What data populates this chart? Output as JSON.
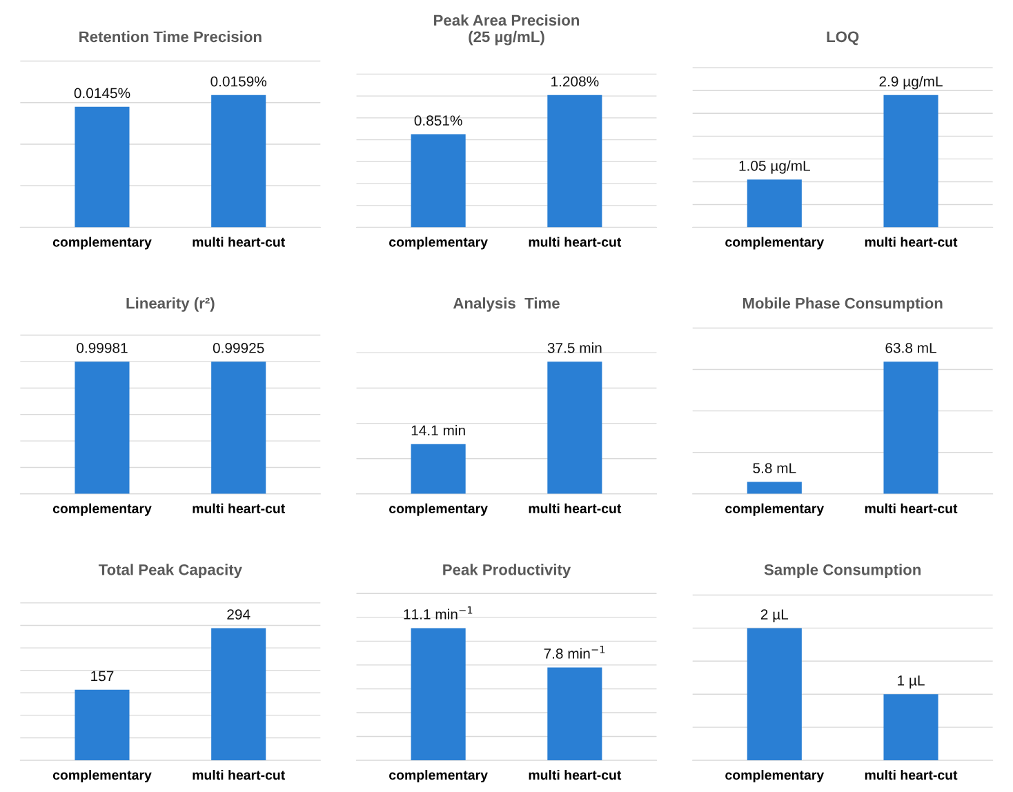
{
  "chart_data": [
    {
      "type": "bar",
      "title": "Retention Time Precision",
      "categories": [
        "complementary",
        "multi heart-cut"
      ],
      "values": [
        0.0145,
        0.0159
      ],
      "value_labels": [
        "0.0145%",
        "0.0159%"
      ],
      "color": "#2a7fd4",
      "grid": "y",
      "tick_labels": "x",
      "legend": false
    },
    {
      "type": "bar",
      "title": "Peak Area Precision\n(25 µg/mL)",
      "categories": [
        "complementary",
        "multi heart-cut"
      ],
      "values": [
        0.851,
        1.208
      ],
      "value_labels": [
        "0.851%",
        "1.208%"
      ],
      "color": "#2a7fd4",
      "grid": "y",
      "tick_labels": "x",
      "legend": false
    },
    {
      "type": "bar",
      "title": "LOQ",
      "categories": [
        "complementary",
        "multi heart-cut"
      ],
      "values": [
        1.05,
        2.9
      ],
      "value_labels": [
        "1.05 µg/mL",
        "2.9 µg/mL"
      ],
      "color": "#2a7fd4",
      "grid": "y",
      "tick_labels": "x",
      "legend": false
    },
    {
      "type": "bar",
      "title": "Linearity (r²)",
      "categories": [
        "complementary",
        "multi heart-cut"
      ],
      "values": [
        0.99981,
        0.99925
      ],
      "value_labels": [
        "0.99981",
        "0.99925"
      ],
      "color": "#2a7fd4",
      "grid": "y",
      "tick_labels": "x",
      "legend": false
    },
    {
      "type": "bar",
      "title": "Analysis  Time",
      "categories": [
        "complementary",
        "multi heart-cut"
      ],
      "values": [
        14.1,
        37.5
      ],
      "value_labels": [
        "14.1 min",
        "37.5 min"
      ],
      "color": "#2a7fd4",
      "grid": "y",
      "tick_labels": "x",
      "legend": false
    },
    {
      "type": "bar",
      "title": "Mobile Phase Consumption",
      "categories": [
        "complementary",
        "multi heart-cut"
      ],
      "values": [
        5.8,
        63.8
      ],
      "value_labels": [
        "5.8 mL",
        "63.8 mL"
      ],
      "color": "#2a7fd4",
      "grid": "y",
      "tick_labels": "x",
      "legend": false
    },
    {
      "type": "bar",
      "title": "Total Peak Capacity",
      "categories": [
        "complementary",
        "multi heart-cut"
      ],
      "values": [
        157,
        294
      ],
      "value_labels": [
        "157",
        "294"
      ],
      "color": "#2a7fd4",
      "grid": "y",
      "tick_labels": "x",
      "legend": false
    },
    {
      "type": "bar",
      "title": "Peak Productivity",
      "categories": [
        "complementary",
        "multi heart-cut"
      ],
      "values": [
        11.1,
        7.8
      ],
      "value_labels": [
        "11.1 min$^{−1}$",
        "7.8 min$^{−1}$"
      ],
      "color": "#2a7fd4",
      "grid": "y",
      "tick_labels": "x",
      "legend": false
    },
    {
      "type": "bar",
      "title": "Sample Consumption",
      "categories": [
        "complementary",
        "multi heart-cut"
      ],
      "values": [
        2,
        1
      ],
      "value_labels": [
        "2 µL",
        "1 µL"
      ],
      "color": "#2a7fd4",
      "grid": "y",
      "tick_labels": "x",
      "legend": false
    }
  ]
}
